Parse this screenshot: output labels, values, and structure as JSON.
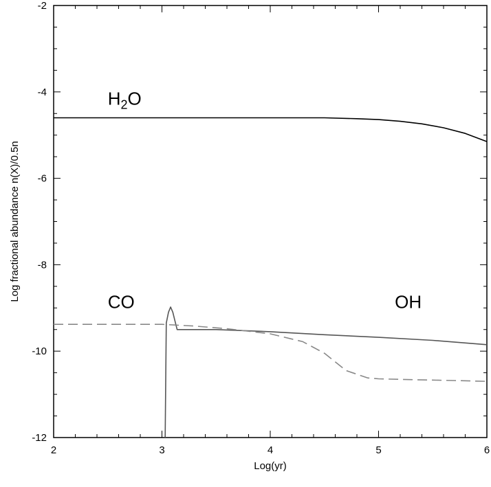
{
  "chart_data": {
    "type": "line",
    "title": "",
    "xlabel": "Log(yr)",
    "ylabel": "Log fractional abundance n(X)/0.5n",
    "xlim": [
      2,
      6
    ],
    "ylim": [
      -12,
      -2
    ],
    "x_ticks": [
      "2",
      "3",
      "4",
      "5",
      "6"
    ],
    "y_ticks": [
      "-2",
      "-4",
      "-6",
      "-8",
      "-10",
      "-12"
    ],
    "grid": false,
    "series": [
      {
        "name": "H2O",
        "color": "#000000",
        "dash": "solid",
        "x": [
          2.0,
          2.5,
          3.0,
          3.5,
          4.0,
          4.5,
          4.8,
          5.0,
          5.2,
          5.4,
          5.6,
          5.8,
          6.0
        ],
        "y": [
          -4.6,
          -4.6,
          -4.6,
          -4.6,
          -4.6,
          -4.6,
          -4.62,
          -4.64,
          -4.68,
          -4.74,
          -4.83,
          -4.96,
          -5.15
        ]
      },
      {
        "name": "OH",
        "color": "#555555",
        "dash": "solid",
        "x": [
          3.03,
          3.04,
          3.06,
          3.08,
          3.1,
          3.12,
          3.14,
          3.5,
          4.0,
          4.5,
          5.0,
          5.5,
          6.0
        ],
        "y": [
          -12.0,
          -9.35,
          -9.1,
          -8.98,
          -9.1,
          -9.3,
          -9.5,
          -9.5,
          -9.55,
          -9.62,
          -9.68,
          -9.75,
          -9.85
        ]
      },
      {
        "name": "CO",
        "color": "#888888",
        "dash": "dashed",
        "x": [
          2.0,
          2.5,
          3.0,
          3.3,
          3.6,
          4.0,
          4.3,
          4.5,
          4.7,
          4.9,
          5.0,
          5.3,
          5.7,
          6.0
        ],
        "y": [
          -9.38,
          -9.38,
          -9.38,
          -9.42,
          -9.48,
          -9.6,
          -9.78,
          -10.05,
          -10.45,
          -10.62,
          -10.64,
          -10.66,
          -10.68,
          -10.7
        ]
      }
    ],
    "annotations": [
      {
        "text_main": "H",
        "text_sub": "2",
        "text_tail": "O",
        "x": 2.5,
        "y": -4.3
      },
      {
        "text": "CO",
        "x": 2.5,
        "y": -9.0
      },
      {
        "text": "OH",
        "x": 5.15,
        "y": -9.0
      }
    ]
  }
}
